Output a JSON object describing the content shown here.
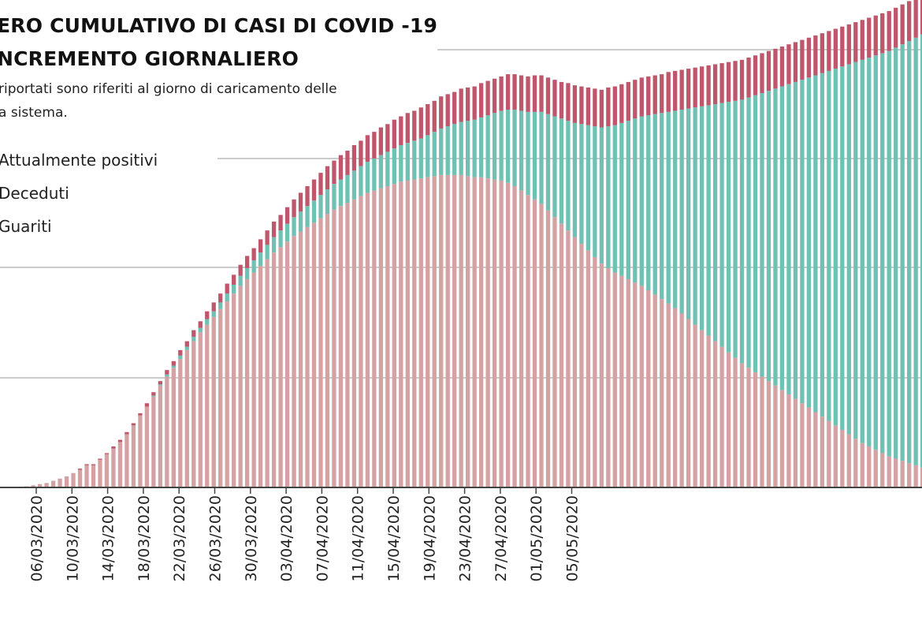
{
  "title_lines": [
    "ERO CUMULATIVO DI CASI DI COVID -19",
    "NCREMENTO GIORNALIERO"
  ],
  "subtitle_lines": [
    "riportati sono riferiti al giorno di caricamento delle",
    "a sistema."
  ],
  "legend": {
    "positive": "Attualmente positivi",
    "deceased": "Deceduti",
    "recovered": "Guariti"
  },
  "colors": {
    "positive": "#d5a2a4",
    "recovered": "#6fc1b4",
    "deceased": "#c0566c",
    "gridline": "#cccccc",
    "axis": "#444444"
  },
  "chart_data": {
    "type": "bar",
    "stacked": true,
    "y_scale": "relative (no y-axis labels shown)",
    "grid": "horizontal gridlines",
    "x_tick_labels": [
      "06/03/2020",
      "10/03/2020",
      "14/03/2020",
      "18/03/2020",
      "22/03/2020",
      "26/03/2020",
      "30/03/2020",
      "03/04/2020",
      "07/04/2020",
      "11/04/2020",
      "15/04/2020",
      "19/04/2020",
      "23/04/2020",
      "27/04/2020",
      "01/05/2020",
      "05/05/2020"
    ],
    "series": [
      {
        "name": "Attualmente positivi",
        "key": "positive",
        "values": [
          1,
          2,
          3,
          4,
          6,
          8,
          10,
          13,
          16,
          20,
          20,
          25,
          30,
          35,
          41,
          48,
          56,
          65,
          73,
          82,
          92,
          100,
          108,
          116,
          124,
          132,
          140,
          147,
          154,
          161,
          168,
          175,
          182,
          188,
          194,
          200,
          206,
          212,
          217,
          222,
          227,
          231,
          235,
          239,
          243,
          247,
          251,
          254,
          257,
          260,
          263,
          266,
          268,
          270,
          272,
          274,
          276,
          277,
          278,
          279,
          280,
          281,
          282,
          282,
          282,
          282,
          281,
          280,
          280,
          279,
          278,
          277,
          275,
          272,
          268,
          264,
          260,
          256,
          250,
          244,
          238,
          232,
          226,
          220,
          214,
          208,
          202,
          198,
          194,
          191,
          188,
          185,
          182,
          178,
          174,
          170,
          166,
          162,
          157,
          152,
          147,
          142,
          137,
          132,
          127,
          122,
          117,
          112,
          108,
          104,
          100,
          96,
          92,
          88,
          84,
          80,
          76,
          72,
          68,
          64,
          60,
          56,
          52,
          48,
          44,
          40,
          37,
          34,
          31,
          28,
          26,
          24,
          22,
          20,
          18,
          17
        ]
      },
      {
        "name": "Guariti",
        "key": "recovered",
        "values": [
          0,
          0,
          0,
          0,
          0,
          0,
          0,
          0,
          0,
          0,
          0,
          0,
          0,
          0,
          0,
          0,
          0,
          0,
          0,
          1,
          1,
          2,
          2,
          3,
          3,
          4,
          4,
          5,
          5,
          6,
          7,
          8,
          9,
          10,
          11,
          12,
          13,
          14,
          15,
          16,
          17,
          18,
          19,
          20,
          21,
          22,
          23,
          24,
          25,
          26,
          27,
          28,
          29,
          30,
          31,
          32,
          33,
          34,
          35,
          36,
          38,
          40,
          42,
          44,
          46,
          48,
          50,
          52,
          54,
          57,
          60,
          63,
          66,
          69,
          72,
          75,
          79,
          83,
          87,
          91,
          95,
          99,
          103,
          108,
          113,
          118,
          123,
          128,
          133,
          138,
          143,
          148,
          153,
          158,
          163,
          168,
          173,
          178,
          184,
          190,
          196,
          202,
          208,
          214,
          220,
          226,
          232,
          238,
          244,
          250,
          256,
          262,
          268,
          274,
          280,
          286,
          292,
          298,
          304,
          310,
          316,
          322,
          328,
          334,
          340,
          346,
          351,
          356,
          361,
          366,
          371,
          376,
          381,
          386,
          391,
          396
        ]
      },
      {
        "name": "Deceduti",
        "key": "deceased",
        "values": [
          0,
          0,
          0,
          0,
          0,
          0,
          0,
          0,
          1,
          1,
          1,
          1,
          1,
          2,
          2,
          2,
          2,
          2,
          3,
          3,
          3,
          4,
          4,
          5,
          5,
          6,
          6,
          7,
          8,
          8,
          9,
          9,
          10,
          11,
          11,
          12,
          13,
          14,
          14,
          15,
          16,
          17,
          18,
          19,
          20,
          21,
          21,
          22,
          22,
          23,
          23,
          24,
          24,
          25,
          25,
          26,
          26,
          27,
          27,
          28,
          28,
          28,
          29,
          29,
          29,
          30,
          30,
          30,
          31,
          31,
          31,
          31,
          32,
          32,
          32,
          32,
          33,
          33,
          33,
          33,
          33,
          34,
          34,
          34,
          34,
          34,
          34,
          35,
          35,
          35,
          35,
          35,
          35,
          35,
          35,
          35,
          36,
          36,
          36,
          36,
          36,
          36,
          36,
          36,
          36,
          36,
          36,
          36,
          36,
          36,
          36,
          36,
          36,
          36,
          36,
          36,
          36,
          36,
          36,
          36,
          36,
          36,
          36,
          36,
          36,
          36,
          36,
          36,
          36,
          36,
          36,
          36,
          36,
          36,
          36,
          36
        ]
      }
    ]
  }
}
